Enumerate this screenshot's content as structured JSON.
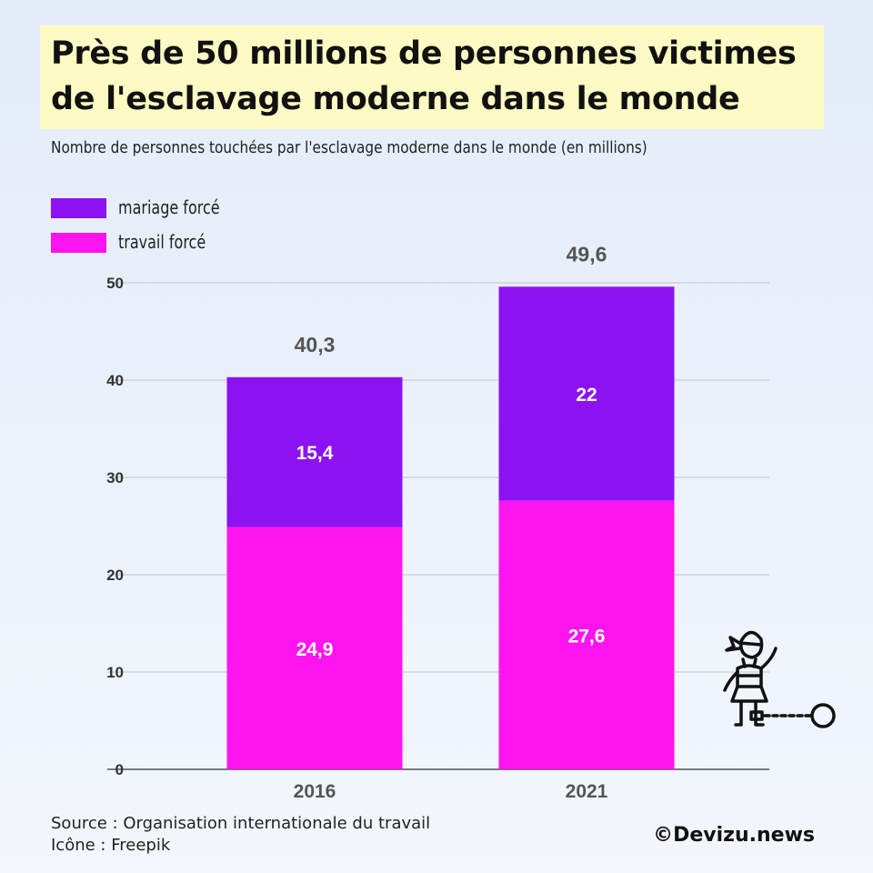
{
  "title": "Près de 50 millions de personnes victimes de l'esclavage moderne dans le monde",
  "subtitle": "Nombre de personnes touchées par l'esclavage moderne dans le monde (en millions)",
  "source": "Source : Organisation internationale du travail",
  "icon_credit": "Icône : Freepik",
  "brand": "©Devizu.news",
  "icon": "chained-person-icon",
  "chart_data": {
    "type": "bar",
    "stacked": true,
    "categories": [
      "2016",
      "2021"
    ],
    "series": [
      {
        "name": "travail forcé",
        "values": [
          24.9,
          27.6
        ],
        "labels": [
          "24,9",
          "27,6"
        ],
        "color": "#ff14f0"
      },
      {
        "name": "mariage forcé",
        "values": [
          15.4,
          22
        ],
        "labels": [
          "15,4",
          "22"
        ],
        "color": "#8c12f2"
      }
    ],
    "totals": [
      "40,3",
      "49,6"
    ],
    "ylim": [
      0,
      50
    ],
    "yticks": [
      0,
      10,
      20,
      30,
      40,
      50
    ],
    "grid": true,
    "legend": "top-left"
  }
}
